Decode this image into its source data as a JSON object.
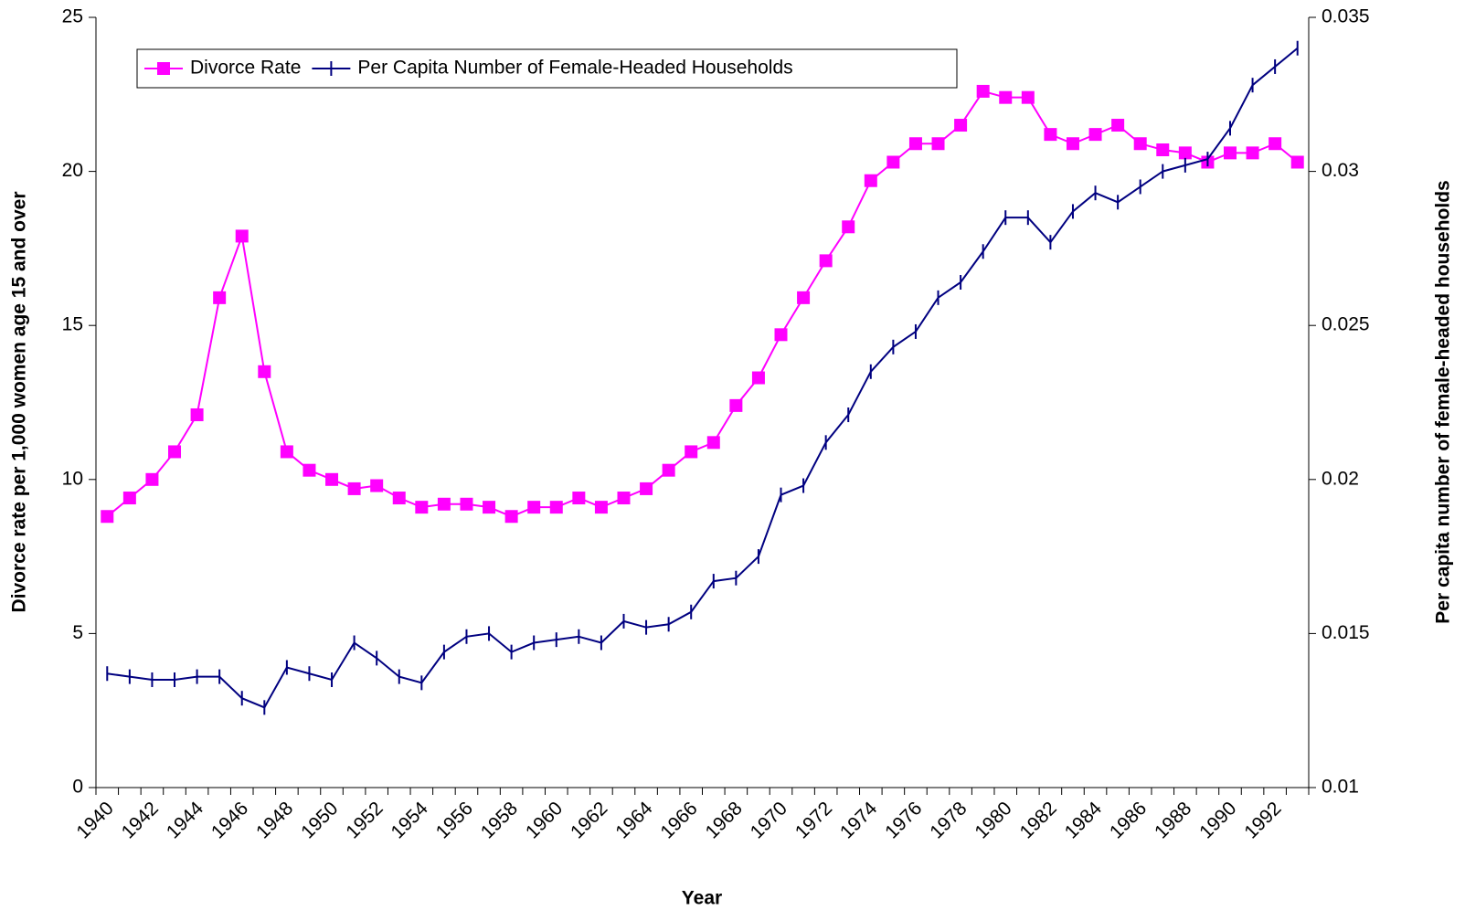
{
  "chart_data": {
    "type": "line",
    "x_label": "Year",
    "y_label": "Divorce rate per 1,000 women age 15 and over",
    "y2_label": "Per capita number of female-headed households",
    "categories": [
      "1940",
      null,
      "1942",
      null,
      "1944",
      null,
      "1946",
      null,
      "1948",
      null,
      "1950",
      null,
      "1952",
      null,
      "1954",
      null,
      "1956",
      null,
      "1958",
      null,
      "1960",
      null,
      "1962",
      null,
      "1964",
      null,
      "1966",
      null,
      "1968",
      null,
      "1970",
      null,
      "1972",
      null,
      "1974",
      null,
      "1976",
      null,
      "1978",
      null,
      "1980",
      null,
      "1982",
      null,
      "1984",
      null,
      "1986",
      null,
      "1988",
      null,
      "1990",
      null,
      "1992",
      null
    ],
    "series": [
      {
        "name": "Divorce Rate",
        "color": "#ff00ff",
        "marker": "square",
        "values": [
          8.8,
          9.4,
          10.0,
          10.9,
          12.1,
          15.9,
          17.9,
          13.5,
          10.9,
          10.3,
          10.0,
          9.7,
          9.8,
          9.4,
          9.1,
          9.2,
          9.2,
          9.1,
          8.8,
          9.1,
          9.1,
          9.4,
          9.1,
          9.4,
          9.7,
          10.3,
          10.9,
          11.2,
          12.4,
          13.3,
          14.7,
          15.9,
          17.1,
          18.2,
          19.7,
          20.3,
          20.9,
          20.9,
          21.5,
          22.6,
          22.4,
          22.4,
          21.2,
          20.9,
          21.2,
          21.5,
          20.9,
          20.7,
          20.6,
          20.3,
          20.6,
          20.6,
          20.9,
          20.3
        ]
      },
      {
        "name": "Per Capita Number of Female-Headed Households",
        "color": "#000080",
        "marker": "dash",
        "axis": "y2",
        "values": [
          0.0137,
          0.0136,
          0.0135,
          0.0135,
          0.0136,
          0.0136,
          0.0129,
          0.0126,
          0.0139,
          0.0137,
          0.0135,
          0.0147,
          0.0142,
          0.0136,
          0.0134,
          0.0144,
          0.0149,
          0.015,
          0.0144,
          0.0147,
          0.0148,
          0.0149,
          0.0147,
          0.0154,
          0.0152,
          0.0153,
          0.0157,
          0.0167,
          0.0168,
          0.0175,
          0.0195,
          0.0198,
          0.0212,
          0.0221,
          0.0235,
          0.0243,
          0.0248,
          0.0259,
          0.0264,
          0.0274,
          0.0285,
          0.0285,
          0.0277,
          0.0287,
          0.0293,
          0.029,
          0.0295,
          0.03,
          0.0302,
          0.0304,
          0.0314,
          0.0328,
          0.0334,
          0.034
        ]
      }
    ],
    "ylim": [
      0,
      25
    ],
    "yticks": [
      0,
      5,
      10,
      15,
      20,
      25
    ],
    "y2lim": [
      0.01,
      0.035
    ],
    "y2ticks": [
      0.01,
      0.015,
      0.02,
      0.025,
      0.03,
      0.035
    ],
    "legend": "top-left"
  }
}
